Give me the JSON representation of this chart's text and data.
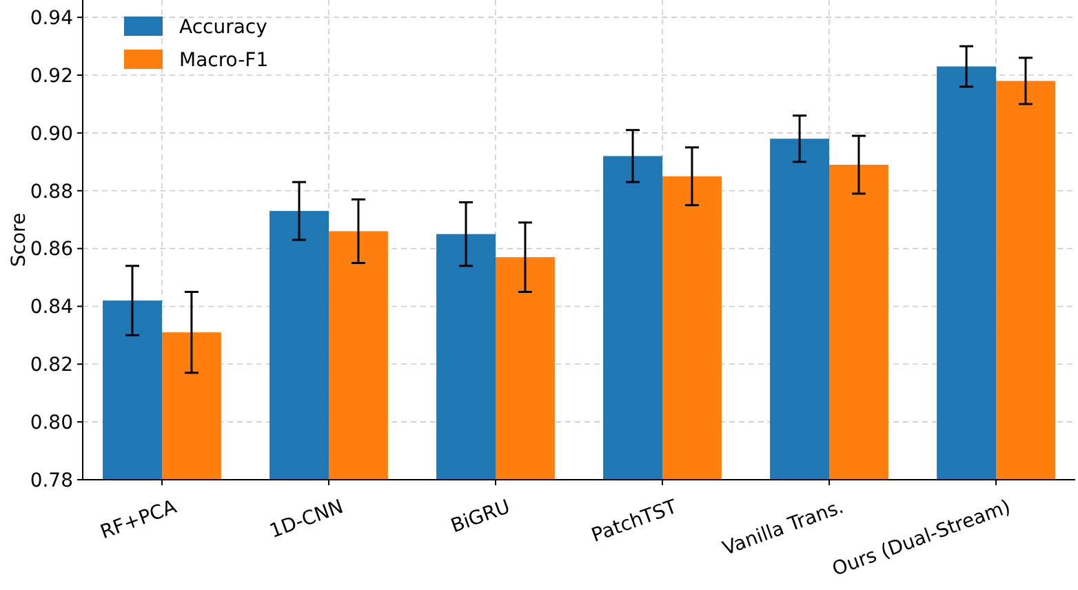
{
  "chart_data": {
    "type": "bar",
    "ylabel": "Score",
    "categories": [
      "RF+PCA",
      "1D-CNN",
      "BiGRU",
      "PatchTST",
      "Vanilla Trans.",
      "Ours (Dual-Stream)"
    ],
    "series": [
      {
        "name": "Accuracy",
        "color": "#1f77b4",
        "values": [
          0.842,
          0.873,
          0.865,
          0.892,
          0.898,
          0.923
        ],
        "errors": [
          0.012,
          0.01,
          0.011,
          0.009,
          0.008,
          0.007
        ]
      },
      {
        "name": "Macro-F1",
        "color": "#ff7f0e",
        "values": [
          0.831,
          0.866,
          0.857,
          0.885,
          0.889,
          0.918
        ],
        "errors": [
          0.014,
          0.011,
          0.012,
          0.01,
          0.01,
          0.008
        ]
      }
    ],
    "ylim": [
      0.78,
      0.946
    ],
    "yticks": [
      {
        "value": 0.78,
        "label": "0.78"
      },
      {
        "value": 0.8,
        "label": "0.80"
      },
      {
        "value": 0.82,
        "label": "0.82"
      },
      {
        "value": 0.84,
        "label": "0.84"
      },
      {
        "value": 0.86,
        "label": "0.86"
      },
      {
        "value": 0.88,
        "label": "0.88"
      },
      {
        "value": 0.9,
        "label": "0.90"
      },
      {
        "value": 0.92,
        "label": "0.92"
      },
      {
        "value": 0.94,
        "label": "0.94"
      }
    ],
    "grid": true,
    "legend": "top left"
  }
}
